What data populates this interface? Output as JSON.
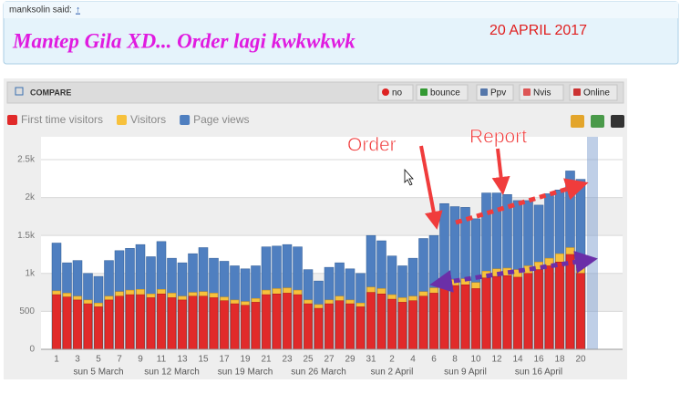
{
  "post": {
    "author": "manksolin said:",
    "link": "↑",
    "title": "Mantep Gila XD... Order lagi kwkwkwk",
    "date": "20 APRIL 2017"
  },
  "toolbar": {
    "title": "COMPARE",
    "buttons": [
      "no",
      "bounce",
      "Ppv",
      "Nvis",
      "Online"
    ]
  },
  "chart_data": {
    "type": "bar",
    "categories": [
      "1",
      null,
      "3",
      null,
      "5",
      null,
      "7",
      null,
      "9",
      null,
      "11",
      null,
      "13",
      null,
      "15",
      null,
      "17",
      null,
      "19",
      null,
      "21",
      null,
      "23",
      null,
      "25",
      null,
      "27",
      null,
      "29",
      null,
      "31",
      null,
      "2",
      null,
      "4",
      null,
      "6",
      null,
      "8",
      null,
      "10",
      null,
      "12",
      null,
      "14",
      null,
      "16",
      null,
      "18",
      null,
      "20"
    ],
    "week_labels": [
      null,
      null,
      null,
      null,
      "sun 5 March",
      null,
      null,
      null,
      null,
      null,
      null,
      "sun 12 March",
      null,
      null,
      null,
      null,
      null,
      null,
      "sun 19 March",
      null,
      null,
      null,
      null,
      null,
      null,
      "sun 26 March",
      null,
      null,
      null,
      null,
      null,
      null,
      "sun 2 April",
      null,
      null,
      null,
      null,
      null,
      null,
      "sun 9 April",
      null,
      null,
      null,
      null,
      null,
      null,
      "sun 16 April",
      null,
      null,
      null,
      null
    ],
    "series": [
      {
        "name": "Page views",
        "color": "#4f7fc0",
        "values": [
          1400,
          1140,
          1170,
          1000,
          960,
          1170,
          1300,
          1330,
          1380,
          1220,
          1420,
          1200,
          1140,
          1260,
          1340,
          1200,
          1160,
          1100,
          1060,
          1100,
          1350,
          1360,
          1380,
          1350,
          1050,
          900,
          1080,
          1140,
          1060,
          1000,
          1500,
          1430,
          1230,
          1100,
          1200,
          1460,
          1500,
          1920,
          1880,
          1870,
          1720,
          2060,
          2060,
          2040,
          1960,
          1960,
          1900,
          2050,
          2100,
          2350,
          2240
        ]
      },
      {
        "name": "Visitors",
        "color": "#f7c13c",
        "values": [
          770,
          740,
          700,
          650,
          610,
          700,
          760,
          780,
          790,
          730,
          790,
          740,
          700,
          750,
          760,
          740,
          690,
          650,
          630,
          670,
          780,
          800,
          810,
          780,
          650,
          590,
          650,
          700,
          650,
          610,
          820,
          800,
          720,
          680,
          700,
          760,
          810,
          940,
          920,
          930,
          880,
          1030,
          1060,
          1070,
          1050,
          1100,
          1150,
          1200,
          1260,
          1340,
          1080
        ]
      },
      {
        "name": "First time visitors",
        "color": "#e12a2a",
        "values": [
          720,
          690,
          650,
          600,
          560,
          650,
          700,
          720,
          720,
          680,
          730,
          680,
          650,
          700,
          700,
          680,
          640,
          600,
          580,
          620,
          720,
          730,
          740,
          720,
          600,
          540,
          600,
          640,
          600,
          560,
          750,
          730,
          660,
          620,
          640,
          700,
          740,
          860,
          840,
          850,
          800,
          940,
          960,
          970,
          950,
          1000,
          1050,
          1100,
          1150,
          1250,
          1000
        ]
      }
    ],
    "legend_order": [
      2,
      1,
      0
    ],
    "ylim": [
      0,
      2800
    ],
    "yticks": [
      0,
      500,
      {
        "value": 1000,
        "label": "1k"
      },
      {
        "value": 1500,
        "label": "1.5k"
      },
      {
        "value": 2000,
        "label": "2k"
      },
      {
        "value": 2500,
        "label": "2.5k"
      }
    ],
    "grid": true,
    "annotations": [
      "Order",
      "Report"
    ]
  }
}
